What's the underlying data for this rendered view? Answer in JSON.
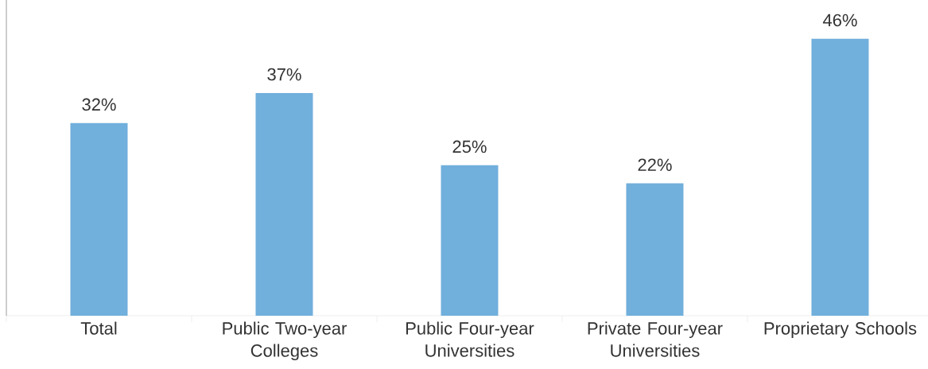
{
  "chart_data": {
    "type": "bar",
    "categories": [
      "Total",
      "Public Two-year Colleges",
      "Public Four-year Universities",
      "Private Four-year Universities",
      "Proprietary Schools"
    ],
    "values": [
      32,
      37,
      25,
      22,
      46
    ],
    "value_labels": [
      "32%",
      "37%",
      "25%",
      "22%",
      "46%"
    ],
    "color": "#71afdc"
  }
}
